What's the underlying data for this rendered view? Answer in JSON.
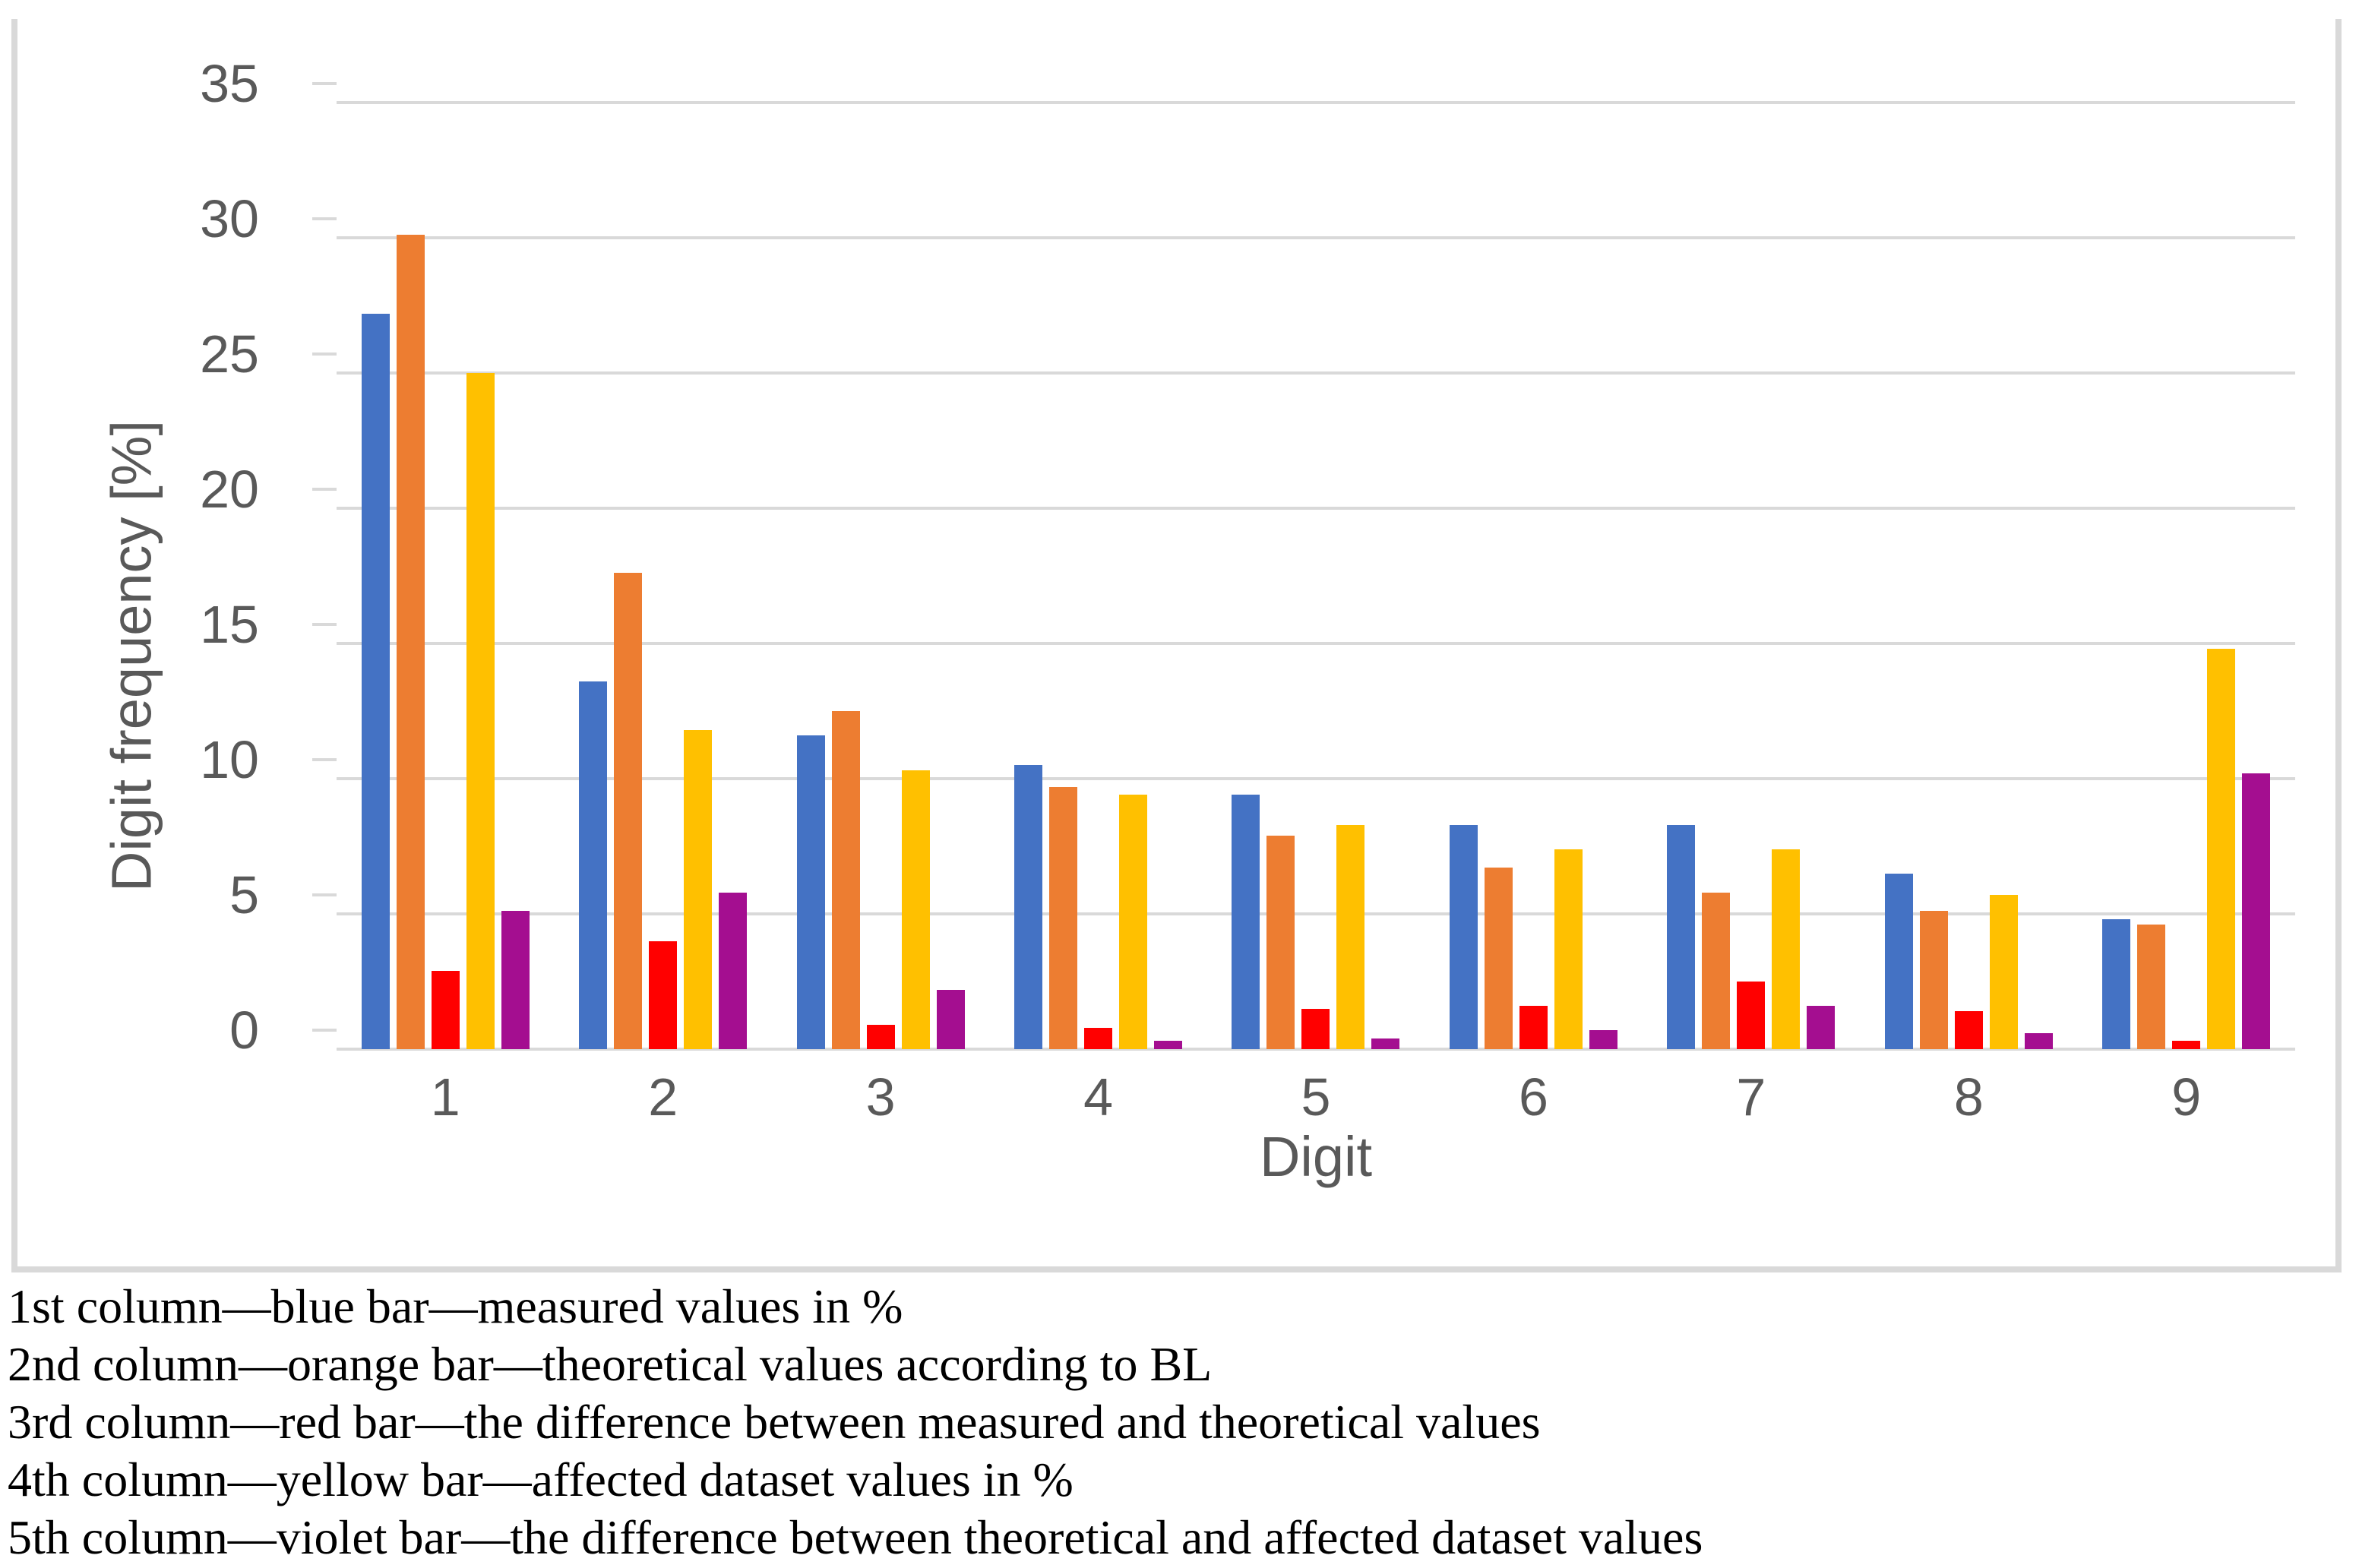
{
  "chart_data": {
    "type": "bar",
    "title": "",
    "categories": [
      "1",
      "2",
      "3",
      "4",
      "5",
      "6",
      "7",
      "8",
      "9"
    ],
    "series": [
      {
        "name": "measured values in %",
        "color": "#4472C4",
        "values": [
          27.2,
          13.6,
          11.6,
          10.5,
          9.4,
          8.3,
          8.3,
          6.5,
          4.8
        ]
      },
      {
        "name": "theoretical values according to BL",
        "color": "#ED7D31",
        "values": [
          30.1,
          17.6,
          12.5,
          9.7,
          7.9,
          6.7,
          5.8,
          5.1,
          4.6
        ]
      },
      {
        "name": "difference between measured and theoretical values",
        "color": "#FF0000",
        "values": [
          2.9,
          4.0,
          0.9,
          0.8,
          1.5,
          1.6,
          2.5,
          1.4,
          0.3
        ]
      },
      {
        "name": "affected dataset values in %",
        "color": "#FFC000",
        "values": [
          25.0,
          11.8,
          10.3,
          9.4,
          8.3,
          7.4,
          7.4,
          5.7,
          14.8
        ]
      },
      {
        "name": "difference between theoretical and affected dataset values",
        "color": "#A40E90",
        "values": [
          5.1,
          5.8,
          2.2,
          0.3,
          0.4,
          0.7,
          1.6,
          0.6,
          10.2
        ]
      }
    ],
    "xlabel": "Digit",
    "ylabel": "Digit frequency [%]",
    "ylim": [
      0,
      35
    ],
    "ytick_step": 5,
    "yticks": [
      "0",
      "5",
      "10",
      "15",
      "20",
      "25",
      "30",
      "35"
    ],
    "grid": true,
    "legend_position": "none"
  },
  "style": {
    "grid_color": "#D9D9D9",
    "frame_border_color": "#D9D9D9",
    "axis_text_color": "#595959",
    "caption_color": "#000000",
    "background": "#FFFFFF"
  },
  "captions": {
    "lines": [
      "1st column—blue bar—measured values in %",
      "2nd column—orange bar—theoretical values according to BL",
      "3rd column—red bar—the difference between measured and theoretical values",
      "4th column—yellow bar—affected dataset values in %",
      "5th column—violet bar—the difference between theoretical and affected dataset values"
    ]
  }
}
